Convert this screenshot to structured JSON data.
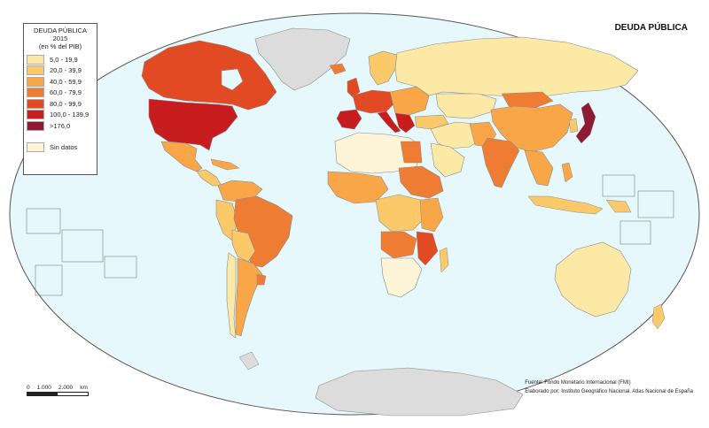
{
  "map": {
    "title": "DEUDA PÚBLICA",
    "legend": {
      "heading_line1": "DEUDA PÚBLICA",
      "heading_line2": "2015",
      "heading_line3": "(en % del PIB)",
      "classes": [
        {
          "label": "5,0 - 19,9",
          "color": "#fde9a6"
        },
        {
          "label": "20,0 - 39,9",
          "color": "#fbc86a"
        },
        {
          "label": "40,0 - 59,9",
          "color": "#f8a648"
        },
        {
          "label": "60,0 - 79,9",
          "color": "#ee7d33"
        },
        {
          "label": "80,0 - 99,9",
          "color": "#e24a24"
        },
        {
          "label": "100,0 - 139,9",
          "color": "#c81d1f"
        },
        {
          "label": ">176,0",
          "color": "#8e1a33"
        }
      ],
      "no_data": {
        "label": "Sin datos",
        "color": "#fef5d8"
      }
    },
    "scale": {
      "labels": [
        "0",
        "1.000",
        "2.000",
        "km"
      ]
    },
    "source_line1": "Fuente: Fondo Monetario Internacional (FMI)",
    "source_line2": "Elaborado por: Instituto Geográfico Nacional. Atlas Nacional de España",
    "colors": {
      "ocean": "#e6f8fb",
      "outline": "#555555",
      "border": "#8a8a8a",
      "ice": "#dcdcdc"
    }
  }
}
